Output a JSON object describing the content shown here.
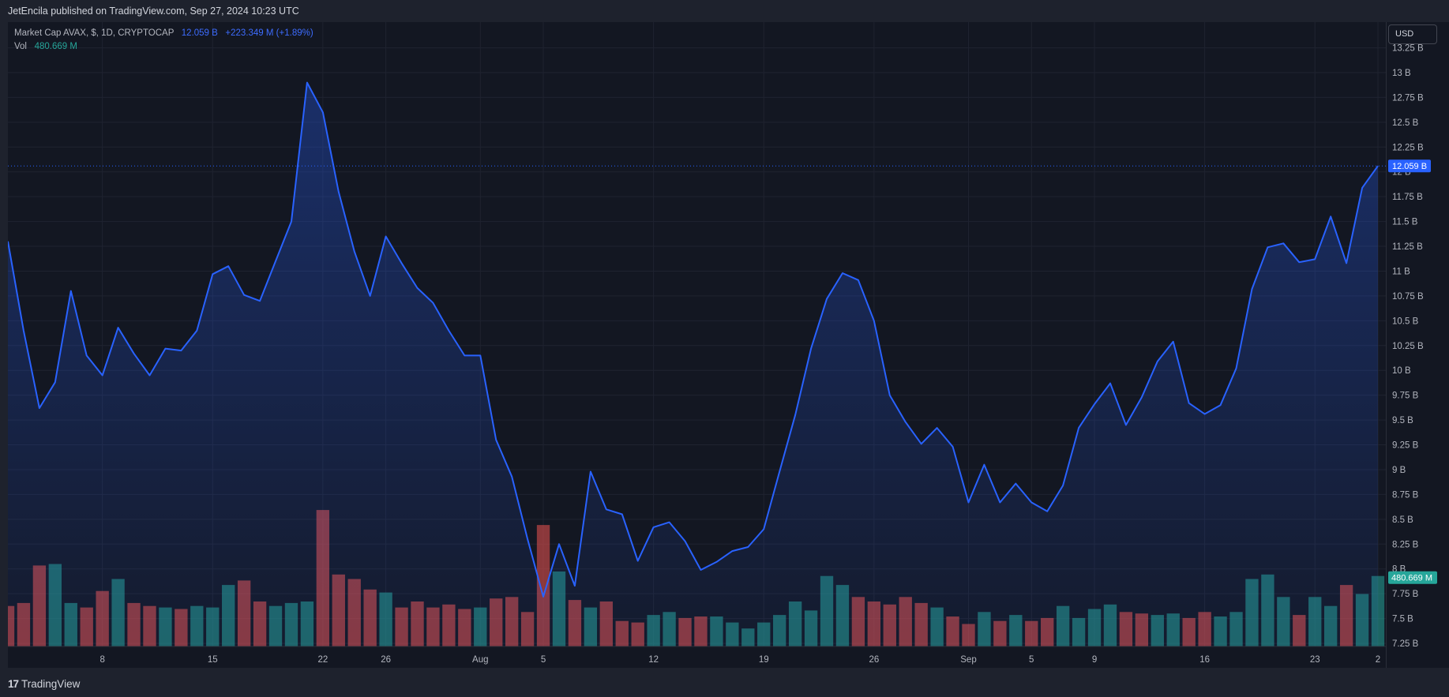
{
  "header": {
    "publisher_text": "JetEncila published on TradingView.com, Sep 27, 2024 10:23 UTC"
  },
  "legend": {
    "symbol": "Market Cap AVAX, $, 1D, CRYPTOCAP",
    "last_value": "12.059 B",
    "change": "+223.349 M (+1.89%)",
    "vol_label": "Vol",
    "vol_value": "480.669 M"
  },
  "price_axis": {
    "currency": "USD"
  },
  "footer": {
    "brand": "TradingView"
  },
  "colors": {
    "line": "#2962ff",
    "up": "#26a69a",
    "down": "#ef5350",
    "background": "#131722"
  },
  "chart_data": {
    "type": "area",
    "y_axis_ticks": [
      "7.25 B",
      "7.5 B",
      "7.75 B",
      "8 B",
      "8.25 B",
      "8.5 B",
      "8.75 B",
      "9 B",
      "9.25 B",
      "9.5 B",
      "9.75 B",
      "10 B",
      "10.25 B",
      "10.5 B",
      "10.75 B",
      "11 B",
      "11.25 B",
      "11.5 B",
      "11.75 B",
      "12 B",
      "12.25 B",
      "12.5 B",
      "12.75 B",
      "13 B",
      "13.25 B"
    ],
    "y_axis_values": [
      7.25,
      7.5,
      7.75,
      8,
      8.25,
      8.5,
      8.75,
      9,
      9.25,
      9.5,
      9.75,
      10,
      10.25,
      10.5,
      10.75,
      11,
      11.25,
      11.5,
      11.75,
      12,
      12.25,
      12.5,
      12.75,
      13,
      13.25
    ],
    "ylim": [
      7.2,
      13.3
    ],
    "x_ticks": [
      {
        "label": "8",
        "index": 6
      },
      {
        "label": "15",
        "index": 13
      },
      {
        "label": "22",
        "index": 20
      },
      {
        "label": "26",
        "index": 24
      },
      {
        "label": "Aug",
        "index": 30
      },
      {
        "label": "5",
        "index": 34
      },
      {
        "label": "12",
        "index": 41
      },
      {
        "label": "19",
        "index": 48
      },
      {
        "label": "26",
        "index": 55
      },
      {
        "label": "Sep",
        "index": 61
      },
      {
        "label": "5",
        "index": 65
      },
      {
        "label": "9",
        "index": 69
      },
      {
        "label": "16",
        "index": 76
      },
      {
        "label": "23",
        "index": 83
      },
      {
        "label": "2",
        "index": 87
      }
    ],
    "market_cap_b": [
      11.3,
      10.4,
      9.62,
      9.88,
      10.8,
      10.15,
      9.95,
      10.43,
      10.17,
      9.95,
      10.22,
      10.2,
      10.4,
      10.97,
      11.05,
      10.76,
      10.7,
      11.1,
      11.5,
      12.9,
      12.6,
      11.8,
      11.2,
      10.75,
      11.35,
      11.08,
      10.83,
      10.68,
      10.4,
      10.15,
      10.15,
      9.3,
      8.93,
      8.3,
      7.72,
      8.25,
      7.83,
      8.98,
      8.6,
      8.55,
      8.08,
      8.42,
      8.47,
      8.28,
      7.99,
      8.07,
      8.18,
      8.22,
      8.4,
      8.98,
      9.55,
      10.22,
      10.72,
      10.98,
      10.91,
      10.5,
      9.75,
      9.48,
      9.26,
      9.42,
      9.23,
      8.67,
      9.05,
      8.67,
      8.86,
      8.67,
      8.58,
      8.84,
      9.42,
      9.66,
      9.87,
      9.45,
      9.73,
      10.09,
      10.29,
      9.67,
      9.56,
      9.65,
      10.02,
      10.82,
      11.24,
      11.28,
      11.09,
      11.12,
      11.55,
      11.08,
      11.84,
      12.06
    ],
    "volume": [
      {
        "v": 0.27,
        "d": "down"
      },
      {
        "v": 0.29,
        "d": "down"
      },
      {
        "v": 0.54,
        "d": "down"
      },
      {
        "v": 0.55,
        "d": "up"
      },
      {
        "v": 0.29,
        "d": "up"
      },
      {
        "v": 0.26,
        "d": "down"
      },
      {
        "v": 0.37,
        "d": "down"
      },
      {
        "v": 0.45,
        "d": "up"
      },
      {
        "v": 0.29,
        "d": "down"
      },
      {
        "v": 0.27,
        "d": "down"
      },
      {
        "v": 0.26,
        "d": "up"
      },
      {
        "v": 0.25,
        "d": "down"
      },
      {
        "v": 0.27,
        "d": "up"
      },
      {
        "v": 0.26,
        "d": "up"
      },
      {
        "v": 0.41,
        "d": "up"
      },
      {
        "v": 0.44,
        "d": "down"
      },
      {
        "v": 0.3,
        "d": "down"
      },
      {
        "v": 0.27,
        "d": "up"
      },
      {
        "v": 0.29,
        "d": "up"
      },
      {
        "v": 0.3,
        "d": "up"
      },
      {
        "v": 0.91,
        "d": "down"
      },
      {
        "v": 0.48,
        "d": "down"
      },
      {
        "v": 0.45,
        "d": "down"
      },
      {
        "v": 0.38,
        "d": "down"
      },
      {
        "v": 0.36,
        "d": "up"
      },
      {
        "v": 0.26,
        "d": "down"
      },
      {
        "v": 0.3,
        "d": "down"
      },
      {
        "v": 0.26,
        "d": "down"
      },
      {
        "v": 0.28,
        "d": "down"
      },
      {
        "v": 0.25,
        "d": "down"
      },
      {
        "v": 0.26,
        "d": "up"
      },
      {
        "v": 0.32,
        "d": "down"
      },
      {
        "v": 0.33,
        "d": "down"
      },
      {
        "v": 0.23,
        "d": "down"
      },
      {
        "v": 0.81,
        "d": "down"
      },
      {
        "v": 0.5,
        "d": "up"
      },
      {
        "v": 0.31,
        "d": "down"
      },
      {
        "v": 0.26,
        "d": "up"
      },
      {
        "v": 0.3,
        "d": "down"
      },
      {
        "v": 0.17,
        "d": "down"
      },
      {
        "v": 0.16,
        "d": "down"
      },
      {
        "v": 0.21,
        "d": "up"
      },
      {
        "v": 0.23,
        "d": "up"
      },
      {
        "v": 0.19,
        "d": "down"
      },
      {
        "v": 0.2,
        "d": "down"
      },
      {
        "v": 0.2,
        "d": "up"
      },
      {
        "v": 0.16,
        "d": "up"
      },
      {
        "v": 0.12,
        "d": "up"
      },
      {
        "v": 0.16,
        "d": "up"
      },
      {
        "v": 0.21,
        "d": "up"
      },
      {
        "v": 0.3,
        "d": "up"
      },
      {
        "v": 0.24,
        "d": "up"
      },
      {
        "v": 0.47,
        "d": "up"
      },
      {
        "v": 0.41,
        "d": "up"
      },
      {
        "v": 0.33,
        "d": "down"
      },
      {
        "v": 0.3,
        "d": "down"
      },
      {
        "v": 0.28,
        "d": "down"
      },
      {
        "v": 0.33,
        "d": "down"
      },
      {
        "v": 0.29,
        "d": "down"
      },
      {
        "v": 0.26,
        "d": "up"
      },
      {
        "v": 0.2,
        "d": "down"
      },
      {
        "v": 0.15,
        "d": "down"
      },
      {
        "v": 0.23,
        "d": "up"
      },
      {
        "v": 0.17,
        "d": "down"
      },
      {
        "v": 0.21,
        "d": "up"
      },
      {
        "v": 0.17,
        "d": "down"
      },
      {
        "v": 0.19,
        "d": "down"
      },
      {
        "v": 0.27,
        "d": "up"
      },
      {
        "v": 0.19,
        "d": "up"
      },
      {
        "v": 0.25,
        "d": "up"
      },
      {
        "v": 0.28,
        "d": "up"
      },
      {
        "v": 0.23,
        "d": "down"
      },
      {
        "v": 0.22,
        "d": "down"
      },
      {
        "v": 0.21,
        "d": "up"
      },
      {
        "v": 0.22,
        "d": "up"
      },
      {
        "v": 0.19,
        "d": "down"
      },
      {
        "v": 0.23,
        "d": "down"
      },
      {
        "v": 0.2,
        "d": "up"
      },
      {
        "v": 0.23,
        "d": "up"
      },
      {
        "v": 0.45,
        "d": "up"
      },
      {
        "v": 0.48,
        "d": "up"
      },
      {
        "v": 0.33,
        "d": "up"
      },
      {
        "v": 0.21,
        "d": "down"
      },
      {
        "v": 0.33,
        "d": "up"
      },
      {
        "v": 0.27,
        "d": "up"
      },
      {
        "v": 0.41,
        "d": "down"
      },
      {
        "v": 0.35,
        "d": "up"
      },
      {
        "v": 0.47,
        "d": "up"
      }
    ],
    "current_price_label": "12.059 B",
    "current_volume_label": "480.669 M"
  }
}
